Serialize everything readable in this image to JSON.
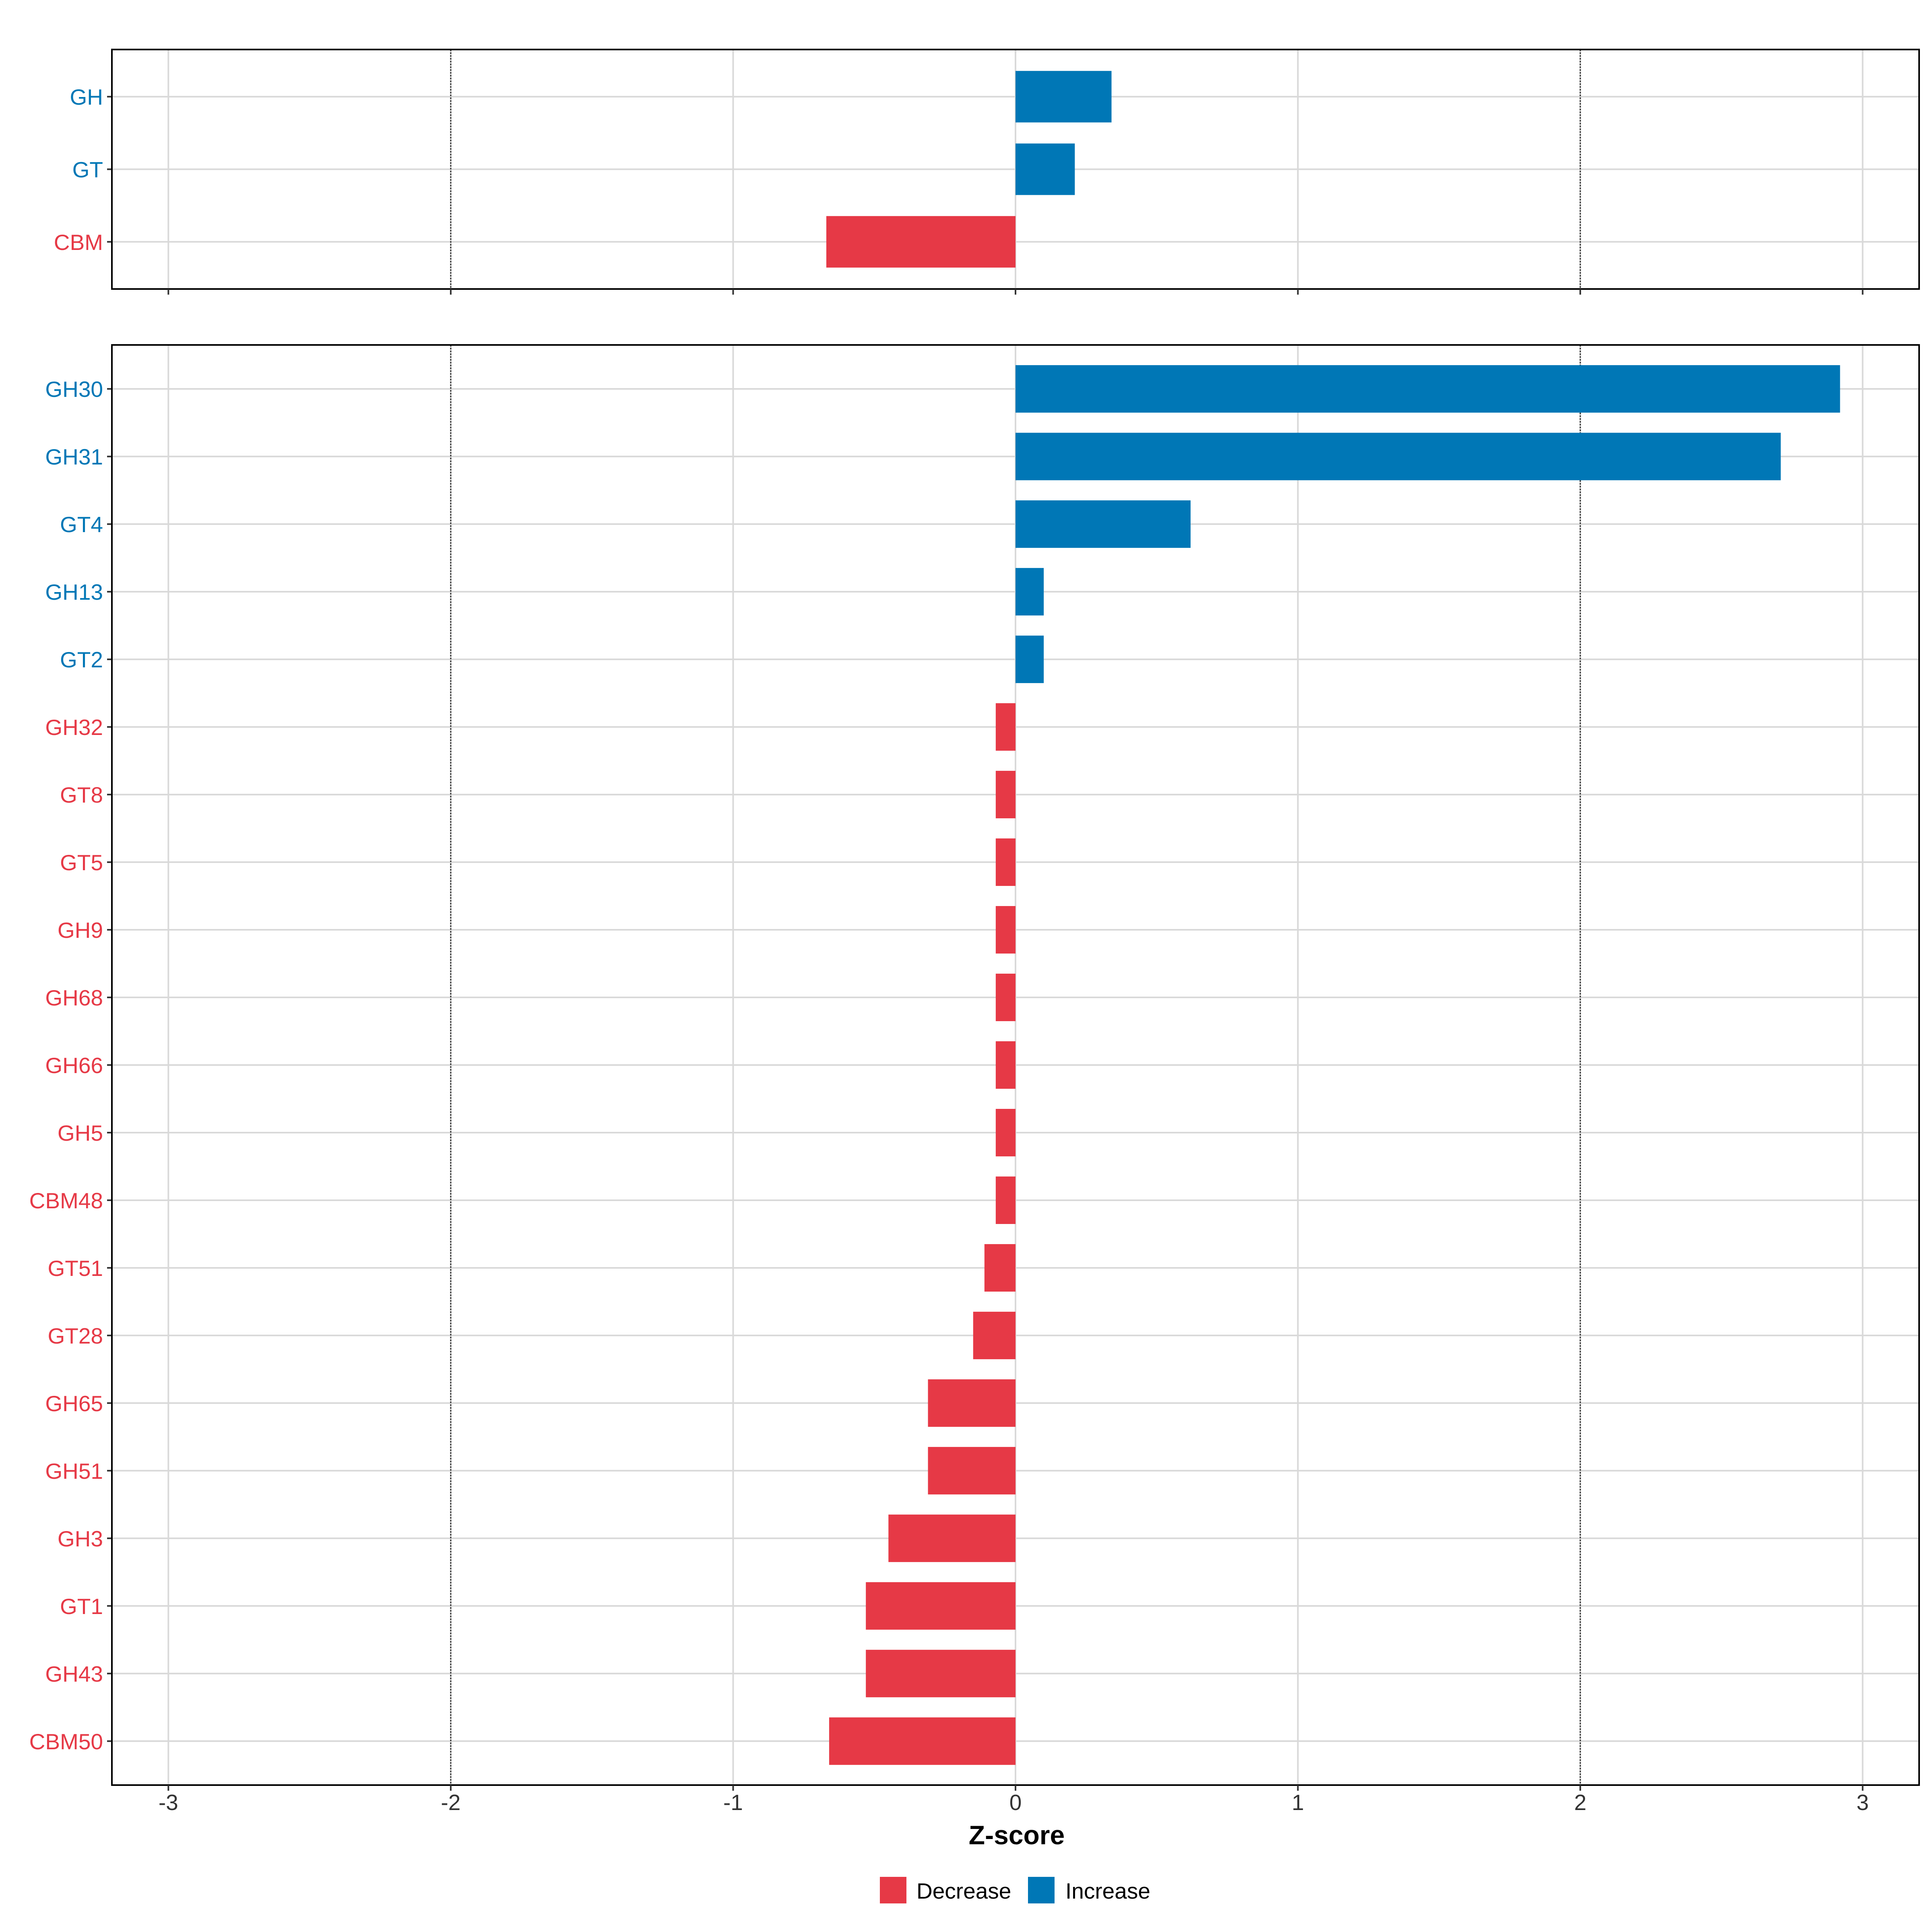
{
  "chart_data": [
    {
      "type": "bar",
      "orientation": "horizontal",
      "panel": "top",
      "categories": [
        "GH",
        "GT",
        "CBM"
      ],
      "values": [
        0.34,
        0.21,
        -0.67
      ],
      "xlim": [
        -3.2,
        3.2
      ]
    },
    {
      "type": "bar",
      "orientation": "horizontal",
      "panel": "bottom",
      "categories": [
        "GH30",
        "GH31",
        "GT4",
        "GH13",
        "GT2",
        "GH32",
        "GT8",
        "GT5",
        "GH9",
        "GH68",
        "GH66",
        "GH5",
        "CBM48",
        "GT51",
        "GT28",
        "GH65",
        "GH51",
        "GH3",
        "GT1",
        "GH43",
        "CBM50"
      ],
      "values": [
        2.92,
        2.71,
        0.62,
        0.1,
        0.1,
        -0.07,
        -0.07,
        -0.07,
        -0.07,
        -0.07,
        -0.07,
        -0.07,
        -0.07,
        -0.11,
        -0.15,
        -0.31,
        -0.31,
        -0.45,
        -0.53,
        -0.53,
        -0.66
      ],
      "xlim": [
        -3.2,
        3.2
      ]
    }
  ],
  "axis": {
    "xlabel": "Z-score",
    "ticks": [
      -3,
      -2,
      -1,
      0,
      1,
      2,
      3
    ],
    "tick_labels": [
      "-3",
      "-2",
      "-1",
      "0",
      "1",
      "2",
      "3"
    ],
    "reference_lines": [
      -2,
      2
    ]
  },
  "legend": {
    "placement": "bottom-center",
    "items": [
      {
        "label": "Decrease",
        "color": "#E63946"
      },
      {
        "label": "Increase",
        "color": "#0077B6"
      }
    ]
  },
  "colors": {
    "increase": "#0077B6",
    "decrease": "#E63946",
    "grid": "#d9d9d9",
    "reference": "#333333",
    "axis_text": "#333333"
  }
}
